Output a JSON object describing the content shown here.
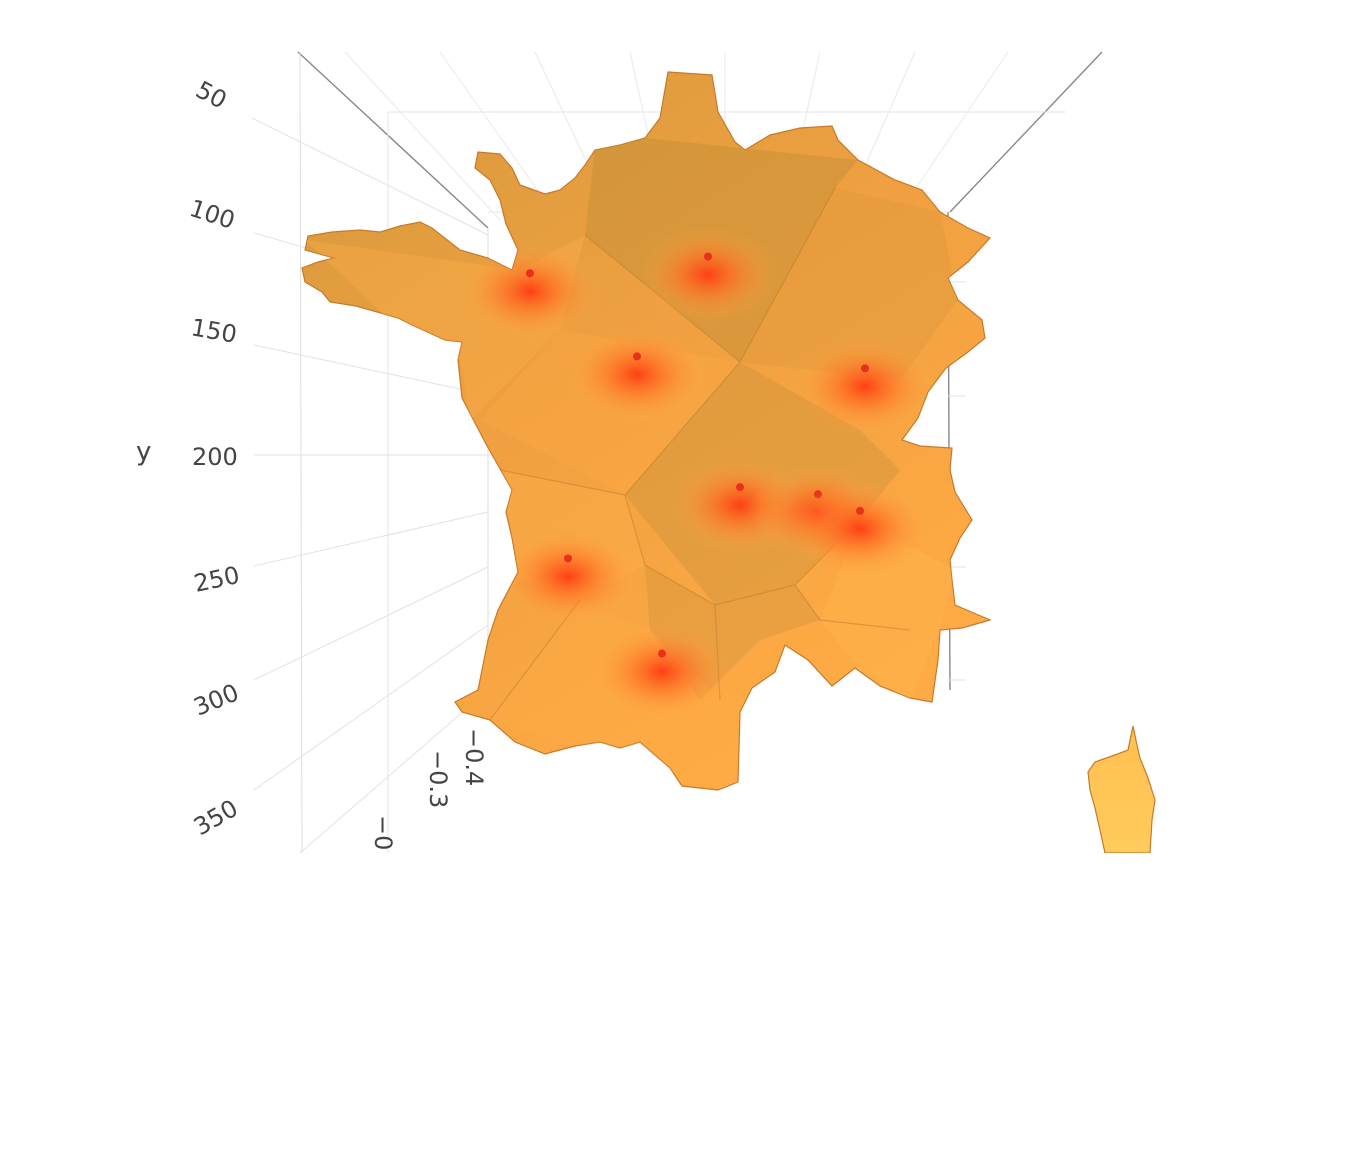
{
  "chart_data": {
    "type": "surface",
    "xlabel": "",
    "ylabel": "y",
    "zlabel": "",
    "y_ticks": [
      "50",
      "100",
      "150",
      "200",
      "250",
      "300",
      "350"
    ],
    "z_ticks": [
      "−0.",
      "−0.3",
      "−0.4"
    ],
    "colorscale": [
      "#ff3b12",
      "#ff7a2a",
      "#ffab45",
      "#ffc658",
      "#d4953c"
    ],
    "grid": true,
    "legend": "none",
    "regions": [
      {
        "name": "mainland"
      },
      {
        "name": "corsica"
      }
    ],
    "peaks": [
      {
        "x": 0.0,
        "y": 125,
        "z": -0.4
      },
      {
        "x": 0.0,
        "y": 160,
        "z": -0.4
      },
      {
        "x": 0.0,
        "y": 165,
        "z": -0.4
      },
      {
        "x": 0.0,
        "y": 118,
        "z": -0.4
      },
      {
        "x": 0.0,
        "y": 215,
        "z": -0.4
      },
      {
        "x": 0.0,
        "y": 218,
        "z": -0.4
      },
      {
        "x": 0.0,
        "y": 225,
        "z": -0.4
      },
      {
        "x": 0.0,
        "y": 245,
        "z": -0.4
      },
      {
        "x": 0.0,
        "y": 285,
        "z": -0.4
      }
    ]
  }
}
